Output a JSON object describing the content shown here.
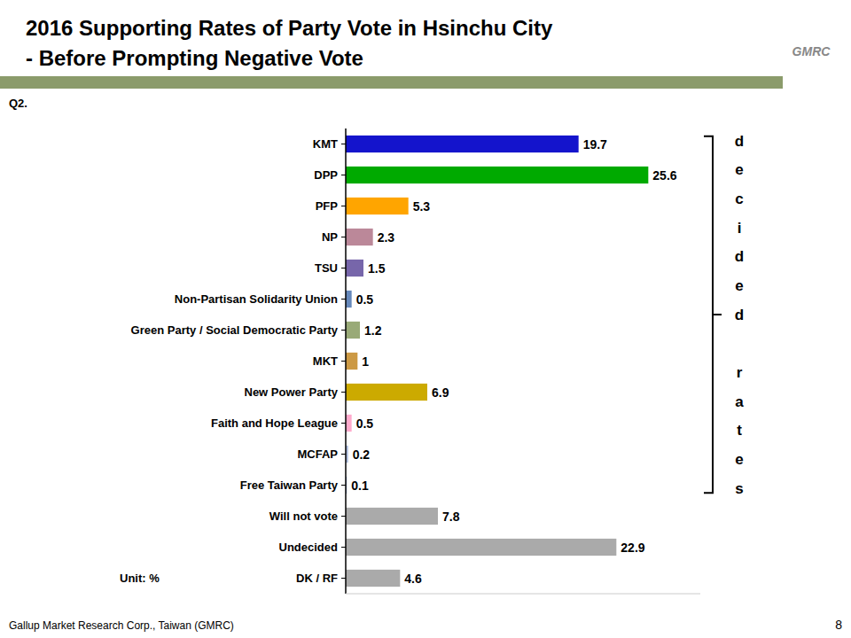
{
  "chart_data": {
    "type": "bar",
    "orientation": "horizontal",
    "title": "2016 Supporting Rates of Party Vote in Hsinchu City",
    "subtitle": "- Before Prompting Negative Vote",
    "categories": [
      "KMT",
      "DPP",
      "PFP",
      "NP",
      "TSU",
      "Non-Partisan Solidarity Union",
      "Green Party / Social Democratic Party",
      "MKT",
      "New Power Party",
      "Faith and Hope League",
      "MCFAP",
      "Free Taiwan Party",
      "Will not vote",
      "Undecided",
      "DK / RF"
    ],
    "values": [
      19.7,
      25.6,
      5.3,
      2.3,
      1.5,
      0.5,
      1.2,
      1.0,
      6.9,
      0.5,
      0.2,
      0.1,
      7.8,
      22.9,
      4.6
    ],
    "colors": [
      "#1414CC",
      "#00AA00",
      "#FFA500",
      "#BB8899",
      "#7766AA",
      "#6688BB",
      "#99AA77",
      "#CC9944",
      "#CCAA00",
      "#FFAACC",
      "#AABBDD",
      "#AABBDD",
      "#AAAAAA",
      "#AAAAAA",
      "#AAAAAA"
    ],
    "xlim": [
      0,
      30
    ],
    "data_labels": true,
    "tick_labels": "y",
    "grid": false,
    "annotations": [
      "Q2.",
      "Unit: %",
      {
        "text": "decided rates",
        "from": "KMT",
        "to": "Free Taiwan Party"
      },
      "Gallup Market Research Corp., Taiwan (GMRC)",
      "8",
      "GMRC"
    ]
  }
}
